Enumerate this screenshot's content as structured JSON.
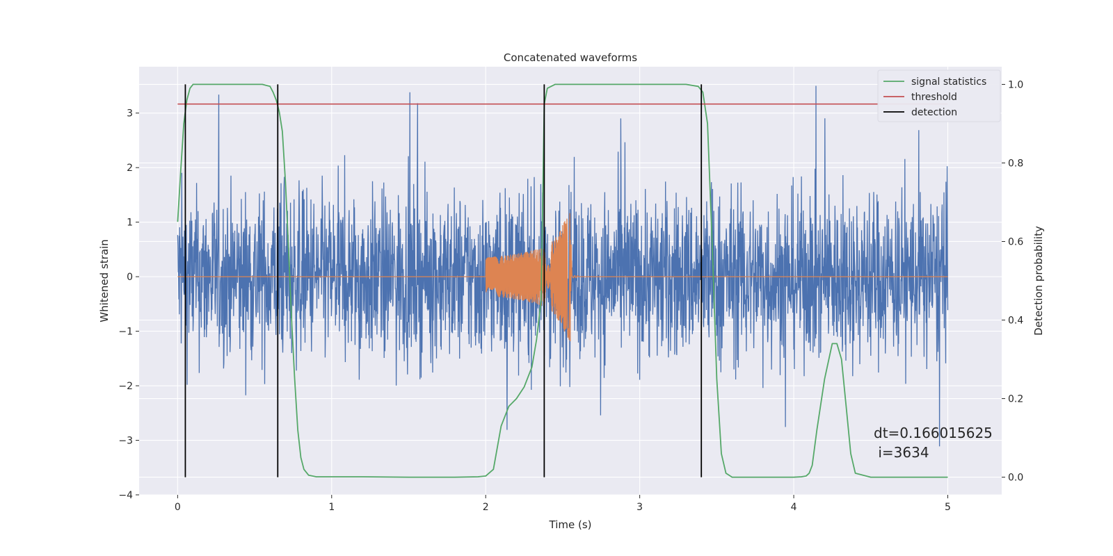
{
  "chart_data": {
    "type": "line",
    "title": "Concatenated waveforms",
    "xlabel": "Time (s)",
    "ylabel_left": "Whitened strain",
    "ylabel_right": "Detection probability",
    "xlim": [
      -0.25,
      5.35
    ],
    "ylim_left": [
      -4,
      3.85
    ],
    "ylim_right": [
      -0.045,
      1.045
    ],
    "xticks": [
      0,
      1,
      2,
      3,
      4,
      5
    ],
    "xtick_labels": [
      "0",
      "1",
      "2",
      "3",
      "4",
      "5"
    ],
    "yticks_left": [
      -4,
      -3,
      -2,
      -1,
      0,
      1,
      2,
      3
    ],
    "ytick_labels_left": [
      "−4",
      "−3",
      "−2",
      "−1",
      "0",
      "1",
      "2",
      "3"
    ],
    "yticks_right": [
      0.0,
      0.2,
      0.4,
      0.6,
      0.8,
      1.0
    ],
    "ytick_labels_right": [
      "0.0",
      "0.2",
      "0.4",
      "0.6",
      "0.8",
      "1.0"
    ],
    "grid": true,
    "legend_position": "top-right",
    "colors": {
      "background": "#eaeaf2",
      "grid": "#ffffff",
      "strain": "#4c72b0",
      "template": "#dd8452",
      "signal_statistics": "#55a868",
      "threshold": "#c44e52",
      "detection": "#000000"
    },
    "series": [
      {
        "name": "strain",
        "axis": "left",
        "x_range": [
          0,
          5
        ],
        "description_values": {
          "typical_envelope": [
            -2.5,
            2.5
          ],
          "max": 3.5,
          "min": -3.7
        }
      },
      {
        "name": "template",
        "axis": "left",
        "x": [
          0,
          2.0,
          2.1,
          2.2,
          2.3,
          2.4,
          2.45,
          2.5,
          2.55,
          2.56,
          5
        ],
        "envelope": [
          0,
          0.35,
          0.38,
          0.42,
          0.48,
          0.56,
          0.7,
          0.95,
          1.2,
          0.02,
          0
        ]
      },
      {
        "name": "signal statistics",
        "axis": "right",
        "x": [
          0.0,
          0.02,
          0.04,
          0.06,
          0.08,
          0.1,
          0.12,
          0.15,
          0.2,
          0.3,
          0.4,
          0.5,
          0.55,
          0.6,
          0.62,
          0.64,
          0.66,
          0.68,
          0.7,
          0.72,
          0.74,
          0.76,
          0.78,
          0.8,
          0.82,
          0.85,
          0.9,
          1.0,
          1.2,
          1.5,
          1.8,
          1.95,
          2.0,
          2.05,
          2.1,
          2.15,
          2.2,
          2.25,
          2.3,
          2.33,
          2.36,
          2.38,
          2.4,
          2.45,
          2.5,
          3.0,
          3.3,
          3.38,
          3.41,
          3.44,
          3.47,
          3.5,
          3.53,
          3.56,
          3.6,
          3.7,
          3.8,
          3.9,
          4.0,
          4.05,
          4.08,
          4.1,
          4.12,
          4.15,
          4.2,
          4.25,
          4.28,
          4.31,
          4.34,
          4.37,
          4.4,
          4.5,
          5.0
        ],
        "values": [
          0.65,
          0.78,
          0.9,
          0.96,
          0.99,
          1.0,
          1.0,
          1.0,
          1.0,
          1.0,
          1.0,
          1.0,
          1.0,
          0.995,
          0.98,
          0.96,
          0.93,
          0.88,
          0.75,
          0.58,
          0.4,
          0.25,
          0.12,
          0.05,
          0.02,
          0.005,
          0.001,
          0.001,
          0.001,
          0.0,
          0.0,
          0.001,
          0.003,
          0.02,
          0.13,
          0.18,
          0.2,
          0.23,
          0.28,
          0.35,
          0.45,
          0.95,
          0.99,
          1.0,
          1.0,
          1.0,
          1.0,
          0.995,
          0.98,
          0.9,
          0.6,
          0.25,
          0.06,
          0.01,
          0.0,
          0.0,
          0.0,
          0.0,
          0.0,
          0.001,
          0.003,
          0.01,
          0.03,
          0.12,
          0.25,
          0.34,
          0.34,
          0.3,
          0.18,
          0.06,
          0.01,
          0.0,
          0.0
        ]
      },
      {
        "name": "threshold",
        "axis": "right",
        "x": [
          0,
          5
        ],
        "values": [
          0.95,
          0.95
        ]
      },
      {
        "name": "detection",
        "axis": "right",
        "x_positions": [
          0.05,
          0.65,
          2.38,
          3.4
        ],
        "range": [
          0.0,
          1.0
        ]
      }
    ],
    "annotations": [
      "dt=0.166015625",
      " i=3634"
    ]
  }
}
